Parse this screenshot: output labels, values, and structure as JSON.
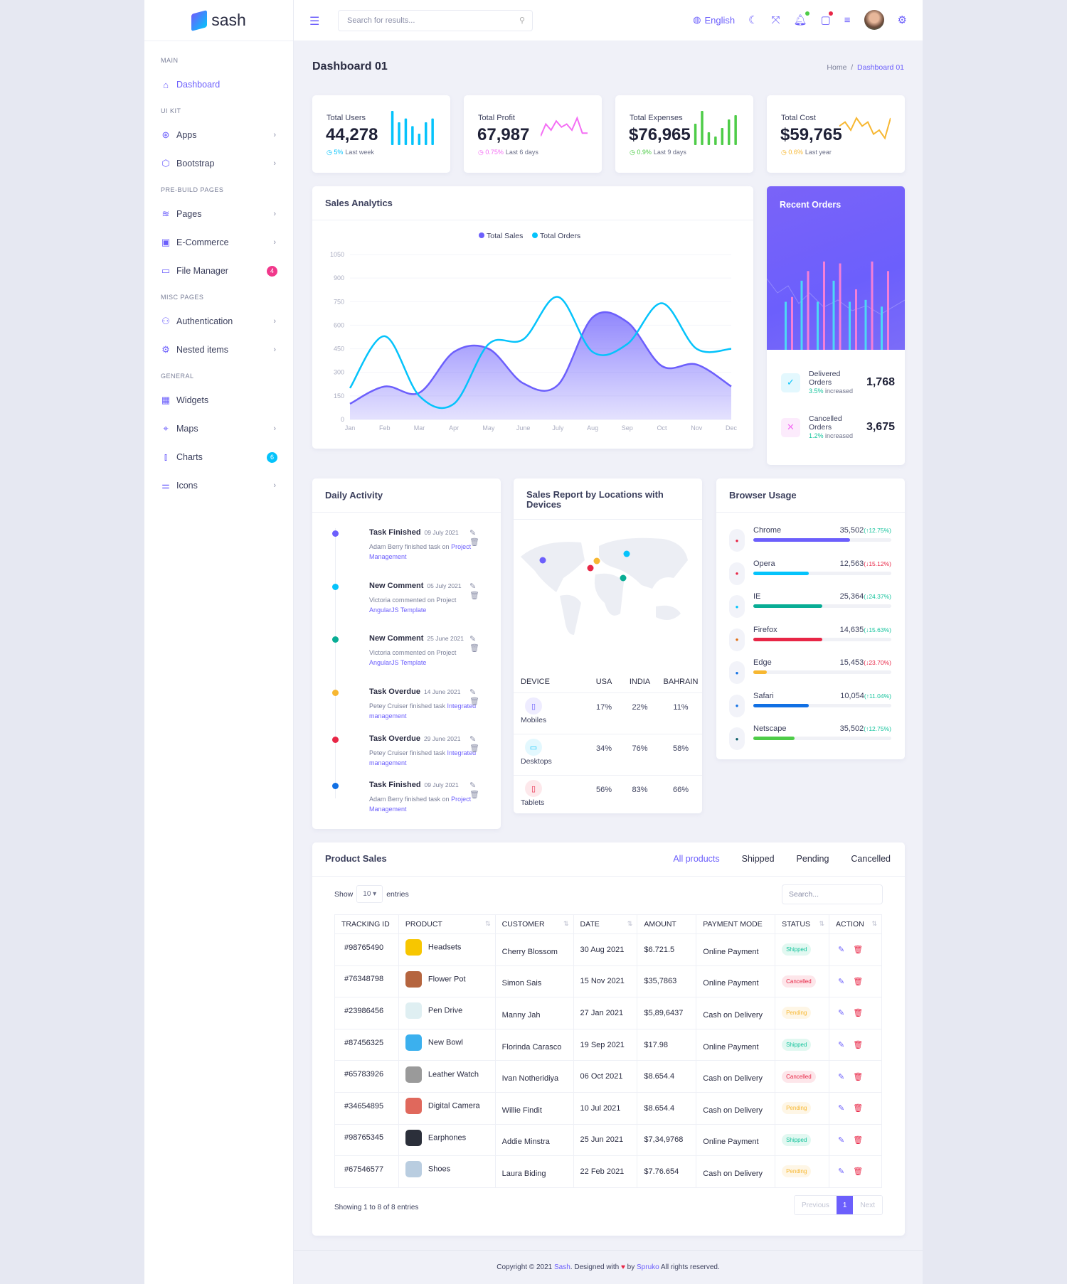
{
  "brand": "sash",
  "sidebar": {
    "sections": [
      {
        "label": "MAIN",
        "items": [
          {
            "label": "Dashboard",
            "icon": "home-icon",
            "glyph": "⌂",
            "active": true
          }
        ]
      },
      {
        "label": "UI KIT",
        "items": [
          {
            "label": "Apps",
            "icon": "apps-icon",
            "glyph": "⊛",
            "chevron": true
          },
          {
            "label": "Bootstrap",
            "icon": "box-icon",
            "glyph": "⬡",
            "chevron": true
          }
        ]
      },
      {
        "label": "PRE-BUILD PAGES",
        "items": [
          {
            "label": "Pages",
            "icon": "layers-icon",
            "glyph": "≋",
            "chevron": true
          },
          {
            "label": "E-Commerce",
            "icon": "shopping-bag-icon",
            "glyph": "▣",
            "chevron": true
          },
          {
            "label": "File Manager",
            "icon": "folder-icon",
            "glyph": "▭",
            "badge": "4",
            "badge_color": "#f1388b"
          }
        ]
      },
      {
        "label": "MISC PAGES",
        "items": [
          {
            "label": "Authentication",
            "icon": "users-icon",
            "glyph": "⚇",
            "chevron": true
          },
          {
            "label": "Nested items",
            "icon": "settings-icon",
            "glyph": "⚙",
            "chevron": true
          }
        ]
      },
      {
        "label": "GENERAL",
        "items": [
          {
            "label": "Widgets",
            "icon": "grid-icon",
            "glyph": "▦"
          },
          {
            "label": "Maps",
            "icon": "map-pin-icon",
            "glyph": "⌖",
            "chevron": true
          },
          {
            "label": "Charts",
            "icon": "bar-chart-icon",
            "glyph": "⫾",
            "badge": "6",
            "badge_color": "#05c3fb"
          },
          {
            "label": "Icons",
            "icon": "sliders-icon",
            "glyph": "⚌",
            "chevron": true
          }
        ]
      }
    ]
  },
  "header": {
    "search_placeholder": "Search for results...",
    "language": "English"
  },
  "page": {
    "title": "Dashboard 01",
    "breadcrumb": [
      "Home",
      "Dashboard 01"
    ]
  },
  "stats": [
    {
      "label": "Total Users",
      "value": "44,278",
      "change": "5%",
      "period": "Last week",
      "color": "#05c3fb",
      "spark": "bars",
      "values": [
        9,
        6,
        7,
        5,
        3,
        6,
        7
      ]
    },
    {
      "label": "Total Profit",
      "value": "67,987",
      "change": "0.75%",
      "period": "Last 6 days",
      "color": "#f46ef4",
      "spark": "line",
      "values": [
        2,
        6,
        4,
        7,
        5,
        6,
        4,
        8,
        3,
        3
      ]
    },
    {
      "label": "Total Expenses",
      "value": "$76,965",
      "change": "0.9%",
      "period": "Last 9 days",
      "color": "#4ecc48",
      "spark": "bars",
      "values": [
        5,
        8,
        3,
        2,
        4,
        6,
        7
      ]
    },
    {
      "label": "Total Cost",
      "value": "$59,765",
      "change": "0.6%",
      "period": "Last year",
      "color": "#f7b731",
      "spark": "line",
      "values": [
        4,
        5,
        3,
        6,
        4,
        5,
        2,
        3,
        1,
        6
      ]
    }
  ],
  "sales_analytics": {
    "title": "Sales Analytics"
  },
  "chart_data": {
    "type": "area",
    "categories": [
      "Jan",
      "Feb",
      "Mar",
      "Apr",
      "May",
      "June",
      "July",
      "Aug",
      "Sep",
      "Oct",
      "Nov",
      "Dec"
    ],
    "series": [
      {
        "name": "Total Sales",
        "color": "#6c5ffc",
        "type": "area",
        "values": [
          100,
          210,
          170,
          430,
          450,
          230,
          220,
          650,
          620,
          340,
          350,
          210
        ]
      },
      {
        "name": "Total Orders",
        "color": "#05c3fb",
        "type": "line",
        "values": [
          200,
          530,
          150,
          100,
          480,
          510,
          780,
          430,
          480,
          740,
          450,
          450
        ]
      }
    ],
    "yticks": [
      0,
      150,
      300,
      450,
      600,
      750,
      900,
      1050
    ],
    "ylim": [
      0,
      1050
    ],
    "legend": "top-center",
    "grid": true
  },
  "recent_orders": {
    "title": "Recent Orders",
    "bars": {
      "cyan": [
        50,
        72,
        50,
        72,
        50,
        52,
        45
      ],
      "pink": [
        55,
        82,
        92,
        90,
        63,
        92,
        82
      ]
    },
    "delivered": {
      "label": "Delivered Orders",
      "pct": "3.5%",
      "suffix": "increased",
      "value": "1,768"
    },
    "cancelled": {
      "label": "Cancelled Orders",
      "pct": "1.2%",
      "suffix": "increased",
      "value": "3,675"
    }
  },
  "daily_activity": {
    "title": "Daily Activity",
    "items": [
      {
        "title": "Task Finished",
        "date": "09 July 2021",
        "text": "Adam Berry finished task on ",
        "link": "Project Management",
        "color": "#6c5ffc"
      },
      {
        "title": "New Comment",
        "date": "05 July 2021",
        "text": "Victoria commented on Project ",
        "link": "AngularJS Template",
        "color": "#05c3fb"
      },
      {
        "title": "New Comment",
        "date": "25 June 2021",
        "text": "Victoria commented on Project ",
        "link": "AngularJS Template",
        "color": "#09ad95"
      },
      {
        "title": "Task Overdue",
        "date": "14 June 2021",
        "text": "Petey Cruiser finished task ",
        "link": "Integrated management",
        "color": "#f7b731"
      },
      {
        "title": "Task Overdue",
        "date": "29 June 2021",
        "text": "Petey Cruiser finished task ",
        "link": "Integrated management",
        "color": "#e82646"
      },
      {
        "title": "Task Finished",
        "date": "09 July 2021",
        "text": "Adam Berry finished task on ",
        "link": "Project Management",
        "color": "#1170e4"
      }
    ]
  },
  "sales_report": {
    "title": "Sales Report by Locations with Devices",
    "markers": [
      {
        "color": "#6c5ffc"
      },
      {
        "color": "#f7b731"
      },
      {
        "color": "#e82646"
      },
      {
        "color": "#05c3fb"
      },
      {
        "color": "#09ad95"
      }
    ],
    "columns": [
      "DEVICE",
      "USA",
      "INDIA",
      "BAHRAIN"
    ],
    "rows": [
      {
        "device": "Mobiles",
        "icon": "smartphone-icon",
        "glyph": "▯",
        "color": "#6c5ffc",
        "bg": "#eeecff",
        "values": [
          "17%",
          "22%",
          "11%"
        ]
      },
      {
        "device": "Desktops",
        "icon": "monitor-icon",
        "glyph": "▭",
        "color": "#05c3fb",
        "bg": "#e3f8fe",
        "values": [
          "34%",
          "76%",
          "58%"
        ]
      },
      {
        "device": "Tablets",
        "icon": "tablet-icon",
        "glyph": "▯",
        "color": "#e82646",
        "bg": "#fde8eb",
        "values": [
          "56%",
          "83%",
          "66%"
        ]
      }
    ]
  },
  "browser_usage": {
    "title": "Browser Usage",
    "items": [
      {
        "name": "Chrome",
        "value": "35,502",
        "change": "(↑12.75%)",
        "up": true,
        "fraction": 0.7,
        "color": "#6c5ffc",
        "icon": "chrome-icon",
        "ic": "#e82646"
      },
      {
        "name": "Opera",
        "value": "12,563",
        "change": "(↓15.12%)",
        "up": false,
        "fraction": 0.4,
        "color": "#05c3fb",
        "icon": "opera-icon",
        "ic": "#e82646"
      },
      {
        "name": "IE",
        "value": "25,364",
        "change": "(↓24.37%)",
        "up": true,
        "fraction": 0.5,
        "color": "#09ad95",
        "icon": "ie-icon",
        "ic": "#05c3fb"
      },
      {
        "name": "Firefox",
        "value": "14,635",
        "change": "(↓15.63%)",
        "up": true,
        "fraction": 0.5,
        "color": "#e82646",
        "icon": "firefox-icon",
        "ic": "#e06f14"
      },
      {
        "name": "Edge",
        "value": "15,453",
        "change": "(↓23.70%)",
        "up": false,
        "fraction": 0.1,
        "color": "#f7b731",
        "icon": "edge-icon",
        "ic": "#1170e4"
      },
      {
        "name": "Safari",
        "value": "10,054",
        "change": "(↑11.04%)",
        "up": true,
        "fraction": 0.4,
        "color": "#1170e4",
        "icon": "safari-icon",
        "ic": "#1170e4"
      },
      {
        "name": "Netscape",
        "value": "35,502",
        "change": "(↑12.75%)",
        "up": true,
        "fraction": 0.3,
        "color": "#4ecc48",
        "icon": "netscape-icon",
        "ic": "#0a5c66"
      }
    ]
  },
  "product_sales": {
    "title": "Product Sales",
    "tabs": [
      "All products",
      "Shipped",
      "Pending",
      "Cancelled"
    ],
    "show": "Show",
    "entries_value": "10",
    "entries": "entries",
    "search_placeholder": "Search...",
    "columns": [
      "TRACKING ID",
      "PRODUCT",
      "CUSTOMER",
      "DATE",
      "AMOUNT",
      "PAYMENT MODE",
      "STATUS",
      "ACTION"
    ],
    "rows": [
      {
        "id": "#98765490",
        "product": "Headsets",
        "img": "#f7c600",
        "customer": "Cherry Blossom",
        "date": "30 Aug 2021",
        "amount": "$6.721.5",
        "payment": "Online Payment",
        "status": "Shipped"
      },
      {
        "id": "#76348798",
        "product": "Flower Pot",
        "img": "#b5653f",
        "customer": "Simon Sais",
        "date": "15 Nov 2021",
        "amount": "$35,7863",
        "payment": "Online Payment",
        "status": "Cancelled"
      },
      {
        "id": "#23986456",
        "product": "Pen Drive",
        "img": "#dfeff2",
        "customer": "Manny Jah",
        "date": "27 Jan 2021",
        "amount": "$5,89,6437",
        "payment": "Cash on Delivery",
        "status": "Pending"
      },
      {
        "id": "#87456325",
        "product": "New Bowl",
        "img": "#3bb0ee",
        "customer": "Florinda Carasco",
        "date": "19 Sep 2021",
        "amount": "$17.98",
        "payment": "Online Payment",
        "status": "Shipped"
      },
      {
        "id": "#65783926",
        "product": "Leather Watch",
        "img": "#9a9a9a",
        "customer": "Ivan Notheridiya",
        "date": "06 Oct 2021",
        "amount": "$8.654.4",
        "payment": "Cash on Delivery",
        "status": "Cancelled"
      },
      {
        "id": "#34654895",
        "product": "Digital Camera",
        "img": "#e0685c",
        "customer": "Willie Findit",
        "date": "10 Jul 2021",
        "amount": "$8.654.4",
        "payment": "Cash on Delivery",
        "status": "Pending"
      },
      {
        "id": "#98765345",
        "product": "Earphones",
        "img": "#2b2f3a",
        "customer": "Addie Minstra",
        "date": "25 Jun 2021",
        "amount": "$7,34,9768",
        "payment": "Online Payment",
        "status": "Shipped"
      },
      {
        "id": "#67546577",
        "product": "Shoes",
        "img": "#b9cde0",
        "customer": "Laura Biding",
        "date": "22 Feb 2021",
        "amount": "$7.76.654",
        "payment": "Cash on Delivery",
        "status": "Pending"
      }
    ],
    "status_colors": {
      "Shipped": [
        "#e2f8f1",
        "#13c39c"
      ],
      "Cancelled": [
        "#fde6ea",
        "#e82646"
      ],
      "Pending": [
        "#fef6e6",
        "#f7b731"
      ]
    },
    "showing": "Showing 1 to 8 of 8 entries",
    "pager": [
      "Previous",
      "1",
      "Next"
    ]
  },
  "footer": {
    "pre": "Copyright © 2021 ",
    "brand": "Sash",
    "mid": ". Designed with ",
    "by": " by ",
    "company": "Spruko",
    "post": " All rights reserved."
  }
}
